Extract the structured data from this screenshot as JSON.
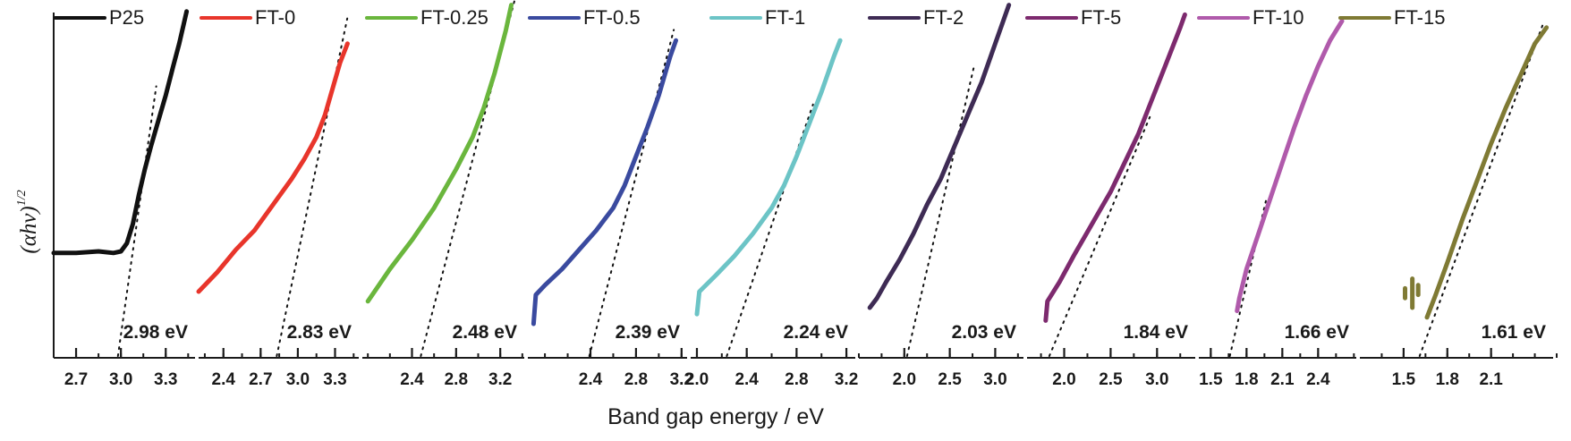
{
  "chart_data": {
    "type": "line",
    "title": "",
    "xlabel": "Band gap energy / eV",
    "ylabel": "(αhν)",
    "ylabel_superscript": "1/2",
    "y_ticks": "none",
    "y_scale_note": "Curve y values are eyeball estimates on a normalized 0-1 scale; the source figure has no y tick values.",
    "legend_placement": "top, one entry per panel",
    "panels": [
      {
        "name": "P25",
        "color": "#111111",
        "band_gap_label": "2.98 eV",
        "band_gap": 2.98,
        "xlim": [
          2.55,
          3.52
        ],
        "ticks": [
          "2.7",
          "3.0",
          "3.3"
        ],
        "tick_values": [
          2.7,
          3.0,
          3.3
        ],
        "x": [
          2.55,
          2.7,
          2.85,
          2.95,
          3.0,
          3.04,
          3.08,
          3.12,
          3.16,
          3.2,
          3.25,
          3.3,
          3.35,
          3.39,
          3.42,
          3.44
        ],
        "y": [
          0.27,
          0.27,
          0.275,
          0.27,
          0.275,
          0.3,
          0.36,
          0.45,
          0.53,
          0.6,
          0.68,
          0.76,
          0.85,
          0.92,
          0.98,
          1.02
        ],
        "tangent": [
          [
            2.98,
            0.0
          ],
          [
            3.12,
            0.43
          ]
        ]
      },
      {
        "name": "FT-0",
        "color": "#e8352b",
        "band_gap_label": "2.83 eV",
        "band_gap": 2.83,
        "xlim": [
          2.2,
          3.52
        ],
        "ticks": [
          "2.4",
          "2.7",
          "3.0",
          "3.3"
        ],
        "tick_values": [
          2.4,
          2.7,
          3.0,
          3.3
        ],
        "x": [
          2.2,
          2.35,
          2.5,
          2.65,
          2.8,
          2.95,
          3.05,
          3.15,
          3.22,
          3.28,
          3.34,
          3.38,
          3.4
        ],
        "y": [
          0.15,
          0.21,
          0.28,
          0.34,
          0.42,
          0.5,
          0.56,
          0.63,
          0.7,
          0.78,
          0.86,
          0.9,
          0.92
        ],
        "tangent": [
          [
            2.83,
            0.0
          ],
          [
            3.24,
            0.72
          ]
        ]
      },
      {
        "name": "FT-0.25",
        "color": "#6ab63d",
        "band_gap_label": "2.48 eV",
        "band_gap": 2.48,
        "xlim": [
          1.95,
          3.45
        ],
        "ticks": [
          "2.4",
          "2.8",
          "3.2"
        ],
        "tick_values": [
          2.4,
          2.8,
          3.2
        ],
        "x": [
          2.0,
          2.2,
          2.4,
          2.6,
          2.8,
          2.95,
          3.05,
          3.15,
          3.25,
          3.3
        ],
        "y": [
          0.12,
          0.22,
          0.31,
          0.41,
          0.53,
          0.63,
          0.72,
          0.83,
          0.96,
          1.04
        ],
        "tangent": [
          [
            2.48,
            0.0
          ],
          [
            3.25,
            0.96
          ]
        ]
      },
      {
        "name": "FT-0.5",
        "color": "#3a4a9f",
        "band_gap_label": "2.39 eV",
        "band_gap": 2.39,
        "xlim": [
          1.85,
          3.28
        ],
        "ticks": [
          "2.4",
          "2.8",
          "3.2"
        ],
        "tick_values": [
          2.4,
          2.8,
          3.2
        ],
        "x": [
          1.9,
          1.92,
          2.0,
          2.15,
          2.3,
          2.45,
          2.6,
          2.7,
          2.8,
          2.9,
          3.0,
          3.1,
          3.15
        ],
        "y": [
          0.05,
          0.14,
          0.17,
          0.22,
          0.28,
          0.34,
          0.41,
          0.48,
          0.57,
          0.66,
          0.76,
          0.88,
          0.93
        ],
        "tangent": [
          [
            2.39,
            0.0
          ],
          [
            2.96,
            0.74
          ]
        ]
      },
      {
        "name": "FT-1",
        "color": "#6cc4c6",
        "band_gap_label": "2.24 eV",
        "band_gap": 2.24,
        "xlim": [
          1.95,
          3.3
        ],
        "ticks": [
          "2.0",
          "2.4",
          "2.8",
          "3.2"
        ],
        "tick_values": [
          2.0,
          2.4,
          2.8,
          3.2
        ],
        "x": [
          2.0,
          2.02,
          2.15,
          2.3,
          2.45,
          2.6,
          2.7,
          2.8,
          2.9,
          3.0,
          3.1,
          3.15
        ],
        "y": [
          0.08,
          0.15,
          0.2,
          0.26,
          0.33,
          0.41,
          0.48,
          0.57,
          0.67,
          0.77,
          0.88,
          0.93
        ],
        "tangent": [
          [
            2.24,
            0.0
          ],
          [
            2.77,
            0.56
          ]
        ]
      },
      {
        "name": "FT-2",
        "color": "#3e2b54",
        "band_gap_label": "2.03 eV",
        "band_gap": 2.03,
        "xlim": [
          1.5,
          3.35
        ],
        "ticks": [
          "2.0",
          "2.5",
          "3.0"
        ],
        "tick_values": [
          2.0,
          2.5,
          3.0
        ],
        "x": [
          1.62,
          1.7,
          1.8,
          1.95,
          2.1,
          2.25,
          2.4,
          2.55,
          2.7,
          2.85,
          3.0,
          3.15
        ],
        "y": [
          0.1,
          0.13,
          0.18,
          0.25,
          0.33,
          0.42,
          0.5,
          0.6,
          0.7,
          0.8,
          0.92,
          1.04
        ],
        "tangent": [
          [
            2.03,
            0.0
          ],
          [
            2.55,
            0.6
          ]
        ]
      },
      {
        "name": "FT-5",
        "color": "#7d2a6e",
        "band_gap_label": "1.84 eV",
        "band_gap": 1.84,
        "xlim": [
          1.6,
          3.45
        ],
        "ticks": [
          "2.0",
          "2.5",
          "3.0"
        ],
        "tick_values": [
          2.0,
          2.5,
          3.0
        ],
        "x": [
          1.8,
          1.82,
          1.95,
          2.1,
          2.3,
          2.5,
          2.65,
          2.8,
          2.95,
          3.1,
          3.25,
          3.3
        ],
        "y": [
          0.06,
          0.12,
          0.18,
          0.26,
          0.36,
          0.46,
          0.55,
          0.64,
          0.75,
          0.86,
          0.97,
          1.01
        ],
        "tangent": [
          [
            1.84,
            0.0
          ],
          [
            2.7,
            0.55
          ]
        ]
      },
      {
        "name": "FT-10",
        "color": "#b05aab",
        "band_gap_label": "1.66 eV",
        "band_gap": 1.66,
        "xlim": [
          1.4,
          2.75
        ],
        "ticks": [
          "1.5",
          "1.8",
          "2.1",
          "2.4"
        ],
        "tick_values": [
          1.5,
          1.8,
          2.1,
          2.4
        ],
        "x": [
          1.72,
          1.74,
          1.8,
          1.9,
          2.0,
          2.1,
          2.2,
          2.3,
          2.4,
          2.5,
          2.6
        ],
        "y": [
          0.09,
          0.13,
          0.22,
          0.33,
          0.44,
          0.55,
          0.66,
          0.76,
          0.85,
          0.93,
          0.99
        ],
        "tangent": [
          [
            1.66,
            0.0
          ],
          [
            1.8,
            0.2
          ]
        ]
      },
      {
        "name": "FT-15",
        "color": "#7f7a34",
        "band_gap_label": "1.61 eV",
        "band_gap": 1.61,
        "xlim": [
          1.2,
          2.55
        ],
        "ticks": [
          "1.5",
          "1.8",
          "2.1"
        ],
        "tick_values": [
          1.5,
          1.8,
          2.1
        ],
        "x": [
          1.66,
          1.72,
          1.8,
          1.9,
          2.0,
          2.1,
          2.2,
          2.3,
          2.4,
          2.48
        ],
        "y": [
          0.07,
          0.14,
          0.24,
          0.37,
          0.49,
          0.61,
          0.72,
          0.82,
          0.92,
          0.97
        ],
        "fragments": [
          {
            "x": 1.51,
            "y_from": 0.13,
            "y_to": 0.16
          },
          {
            "x": 1.56,
            "y_from": 0.1,
            "y_to": 0.19
          },
          {
            "x": 1.6,
            "y_from": 0.14,
            "y_to": 0.17
          }
        ],
        "tangent": [
          [
            1.61,
            0.0
          ],
          [
            2.3,
            0.8
          ]
        ]
      }
    ]
  }
}
